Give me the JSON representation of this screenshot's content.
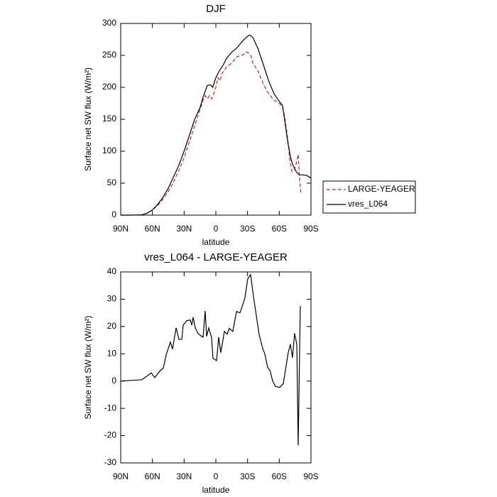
{
  "chart_data": [
    {
      "type": "line",
      "title": "DJF",
      "x_label": "latitude",
      "y_label": "Surface net SW flux (W/m²)",
      "xlim": [
        90,
        -90
      ],
      "xticks": [
        {
          "value": 90,
          "label": "90N"
        },
        {
          "value": 60,
          "label": "60N"
        },
        {
          "value": 30,
          "label": "30N"
        },
        0,
        {
          "value": -30,
          "label": "30S"
        },
        {
          "value": -60,
          "label": "60S"
        },
        {
          "value": -90,
          "label": "90S"
        }
      ],
      "ylim": [
        0,
        300
      ],
      "yticks": [
        0,
        50,
        100,
        150,
        200,
        250,
        300
      ],
      "legend": "right",
      "series": [
        {
          "name": "LARGE-YEAGER",
          "color": "#e41a1c",
          "linestyle": "dashed",
          "x": [
            90,
            80,
            70,
            65,
            60,
            55,
            50,
            45,
            40,
            35,
            30,
            25,
            20,
            15,
            12,
            10,
            8,
            6,
            4,
            2,
            0,
            -2,
            -4,
            -6,
            -10,
            -15,
            -20,
            -25,
            -28,
            -30,
            -33,
            -35,
            -40,
            -45,
            -50,
            -55,
            -60,
            -63,
            -65,
            -68,
            -70,
            -72,
            -74,
            -76,
            -78,
            -79,
            -80.6
          ],
          "values": [
            0,
            0,
            0.5,
            3,
            8,
            15,
            25,
            37,
            52,
            70,
            90,
            115,
            140,
            165,
            180,
            187,
            182,
            187,
            182,
            190,
            200,
            215,
            210,
            222,
            232,
            238,
            248,
            250,
            255,
            255,
            250,
            238,
            225,
            205,
            190,
            180,
            175,
            170,
            155,
            120,
            85,
            68,
            70,
            80,
            95,
            60,
            33
          ]
        },
        {
          "name": "vres_L064",
          "color": "#000000",
          "linestyle": "solid",
          "x": [
            90,
            80,
            70,
            65,
            60,
            55,
            50,
            45,
            40,
            35,
            30,
            25,
            20,
            15,
            12,
            8,
            5,
            3,
            0,
            -3,
            -7,
            -10,
            -15,
            -20,
            -25,
            -30,
            -32,
            -35,
            -40,
            -45,
            -50,
            -55,
            -60,
            -63,
            -65,
            -68,
            -71,
            -73,
            -76,
            -79,
            -82,
            -86,
            -90
          ],
          "values": [
            0,
            0,
            0.5,
            3,
            8,
            17,
            28,
            42,
            60,
            78,
            100,
            125,
            150,
            168,
            185,
            203,
            204,
            200,
            215,
            225,
            235,
            245,
            255,
            262,
            272,
            280,
            282,
            278,
            260,
            235,
            210,
            190,
            178,
            172,
            150,
            115,
            88,
            78,
            68,
            63,
            63,
            62,
            58
          ]
        }
      ]
    },
    {
      "type": "line",
      "title": "vres_L064 - LARGE-YEAGER",
      "x_label": "latitude",
      "y_label": "Surface net SW flux (W/m²)",
      "xlim": [
        90,
        -90
      ],
      "xticks": [
        {
          "value": 90,
          "label": "90N"
        },
        {
          "value": 60,
          "label": "60N"
        },
        {
          "value": 30,
          "label": "30N"
        },
        0,
        {
          "value": -30,
          "label": "30S"
        },
        {
          "value": -60,
          "label": "60S"
        },
        {
          "value": -90,
          "label": "90S"
        }
      ],
      "ylim": [
        -30,
        40
      ],
      "yticks": [
        -30,
        -20,
        -10,
        0,
        10,
        20,
        30,
        40
      ],
      "series": [
        {
          "color": "#000000",
          "linestyle": "solid",
          "x": [
            90,
            69.9,
            61.1,
            57.8,
            55.1,
            52.4,
            49.7,
            47,
            43,
            41,
            37.6,
            34.9,
            32.2,
            30.9,
            27.5,
            24.2,
            22.8,
            21.5,
            19.5,
            16.8,
            13.4,
            12.1,
            10.1,
            8.7,
            6.7,
            4,
            2.7,
            -0.7,
            -2.7,
            -4.7,
            -8.1,
            -10.7,
            -12.8,
            -16.1,
            -19.5,
            -22.8,
            -25.5,
            -27.5,
            -30.2,
            -32.9,
            -35.6,
            -38.3,
            -41,
            -44.3,
            -46.3,
            -49,
            -51.1,
            -53.8,
            -56.4,
            -60.4,
            -63.8,
            -65.8,
            -68.5,
            -70.5,
            -72.5,
            -74.5,
            -76.6,
            -77.9,
            -79.9
          ],
          "values": [
            0,
            0.5,
            3,
            1.3,
            2.6,
            3.9,
            4.7,
            9.6,
            14.3,
            11.7,
            19.5,
            15.3,
            15.3,
            20.5,
            22.1,
            22.4,
            20.5,
            23.4,
            19.5,
            17.4,
            16.4,
            16.1,
            25.7,
            16.4,
            19.5,
            15.9,
            8.3,
            7.5,
            16.1,
            10.4,
            18.2,
            17.2,
            19.3,
            18.2,
            25.5,
            25,
            28,
            30.5,
            37.5,
            39,
            31,
            24,
            17,
            12,
            10,
            5,
            4,
            0,
            -2,
            -2.3,
            -1,
            4,
            10.5,
            13.5,
            8.5,
            17.5,
            13.5,
            -23.5,
            27.5
          ]
        }
      ]
    }
  ]
}
